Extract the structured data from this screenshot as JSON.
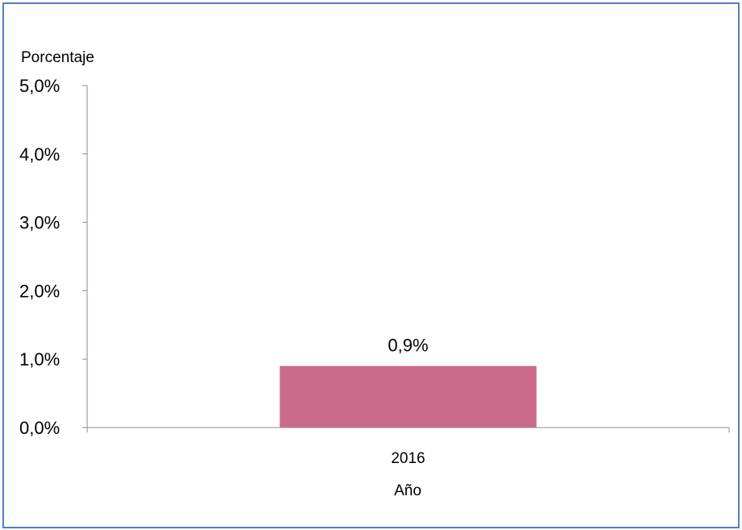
{
  "chart_data": {
    "type": "bar",
    "title": "",
    "xlabel": "Año",
    "ylabel": "Porcentaje",
    "categories": [
      "2016"
    ],
    "values": [
      0.9
    ],
    "data_labels": [
      "0,9%"
    ],
    "ylim": [
      0,
      5
    ],
    "y_ticks": [
      0,
      1,
      2,
      3,
      4,
      5
    ],
    "y_tick_labels": [
      "0,0%",
      "1,0%",
      "2,0%",
      "3,0%",
      "4,0%",
      "5,0%"
    ],
    "grid": false,
    "legend": "none",
    "colors": {
      "bar": "#cc6a8c",
      "frame": "#4f81bd",
      "axis": "#8c8c8c",
      "text": "#000000"
    }
  }
}
